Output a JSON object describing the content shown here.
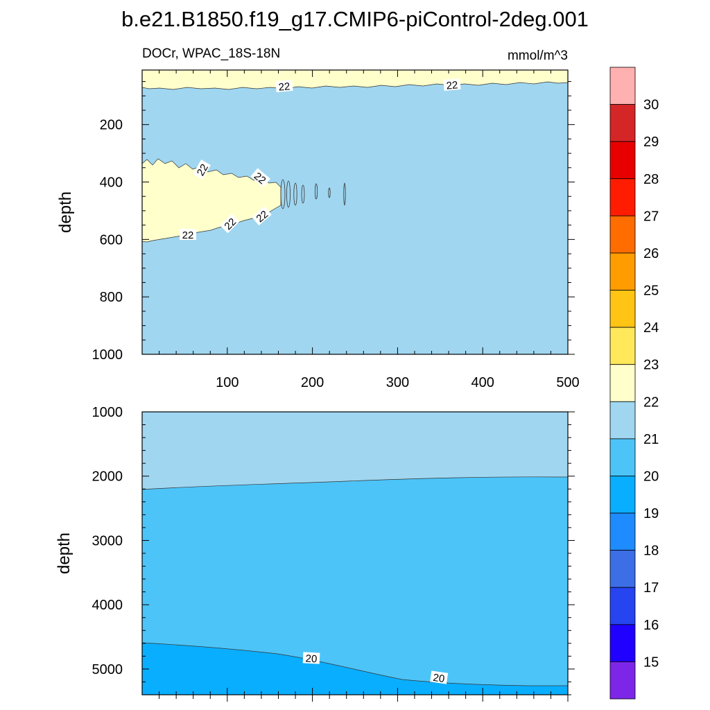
{
  "title": "b.e21.B1850.f19_g17.CMIP6-piControl-2deg.001",
  "chart_data": [
    {
      "type": "contour",
      "left_label": "DOCr, WPAC_18S-18N",
      "right_label": "mmol/m^3",
      "ylabel": "depth",
      "xlabel": "",
      "xlim": [
        0,
        500
      ],
      "ylim": [
        1000,
        10
      ],
      "x_ticks": [
        100,
        200,
        300,
        400,
        500
      ],
      "y_ticks": [
        200,
        400,
        600,
        800,
        1000
      ],
      "contour_labels": [
        "22",
        "22",
        "22",
        "22",
        "22",
        "22",
        "22"
      ],
      "regions": [
        {
          "range": "22-23",
          "location": "surface layer 10-60 m"
        },
        {
          "range": "21-22",
          "location": "background 60-1000 m"
        },
        {
          "range": "22-23",
          "location": "tongue 330-600 m, x 0-240"
        }
      ]
    },
    {
      "type": "contour",
      "ylabel": "depth",
      "xlim": [
        0,
        500
      ],
      "ylim": [
        5400,
        1000
      ],
      "y_ticks": [
        1000,
        2000,
        3000,
        4000,
        5000
      ],
      "contour_labels": [
        "20",
        "20"
      ],
      "boundary_21_depth": [
        2200,
        2000
      ],
      "boundary_20_depth": [
        4550,
        5200
      ],
      "regions": [
        {
          "range": "21-22",
          "location": "1000-2100 m"
        },
        {
          "range": "20-21",
          "location": "2100-4800 m"
        },
        {
          "range": "19-20",
          "location": "below 4550-5200 m"
        }
      ]
    }
  ],
  "colorbar": {
    "labels": [
      "30",
      "29",
      "28",
      "27",
      "26",
      "25",
      "24",
      "23",
      "22",
      "21",
      "20",
      "19",
      "18",
      "17",
      "16",
      "15"
    ],
    "colors": [
      "#ffb0b0",
      "#d42626",
      "#e80000",
      "#ff1c00",
      "#ff6c00",
      "#ff9c00",
      "#ffc414",
      "#ffe85a",
      "#ffffcc",
      "#a0d6f0",
      "#4cc4f8",
      "#0aaeff",
      "#1e8cff",
      "#3c6ee6",
      "#2644f0",
      "#2000ff",
      "#7d26e8"
    ]
  }
}
